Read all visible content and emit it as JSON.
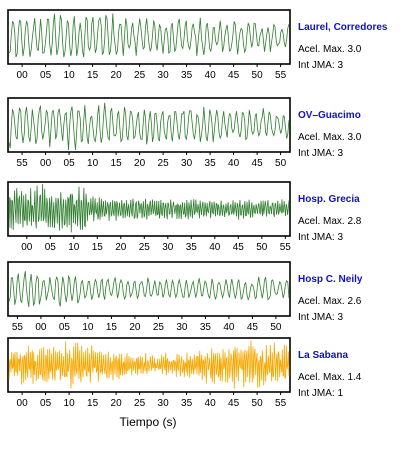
{
  "chart_data": {
    "type": "line",
    "xlabel": "Tiempo (s)",
    "panels": [
      {
        "station": "Laurel, Corredores",
        "accel_label": "Acel. Max. 3.0",
        "jma_label": "Int JMA: 3",
        "color": "#2e7d2e",
        "tick_labels": [
          "00",
          "05",
          "10",
          "15",
          "20",
          "25",
          "30",
          "35",
          "40",
          "45",
          "50",
          "55"
        ],
        "x_range": [
          -3,
          57
        ],
        "activity": "early-strong"
      },
      {
        "station": "OV–Guacimo",
        "accel_label": "Acel. Max. 3.0",
        "jma_label": "Int JMA: 3",
        "color": "#2e7d2e",
        "tick_labels": [
          "55",
          "00",
          "05",
          "10",
          "15",
          "20",
          "25",
          "30",
          "35",
          "40",
          "45",
          "50"
        ],
        "x_range": [
          -58,
          2
        ],
        "activity": "early-strong"
      },
      {
        "station": "Hosp. Grecia",
        "accel_label": "Acel. Max. 2.8",
        "jma_label": "Int JMA: 3",
        "color": "#2e7d2e",
        "tick_labels": [
          "00",
          "05",
          "10",
          "15",
          "20",
          "25",
          "30",
          "35",
          "40",
          "45",
          "50",
          "55"
        ],
        "x_range": [
          -4,
          56
        ],
        "activity": "high-freq"
      },
      {
        "station": "Hosp C. Neily",
        "accel_label": "Acel. Max. 2.6",
        "jma_label": "Int JMA: 3",
        "color": "#2e7d2e",
        "tick_labels": [
          "55",
          "00",
          "05",
          "10",
          "15",
          "20",
          "25",
          "30",
          "35",
          "40",
          "45",
          "50"
        ],
        "x_range": [
          -57,
          3
        ],
        "activity": "moderate"
      },
      {
        "station": "La Sabana",
        "accel_label": "Acel. Max. 1.4",
        "jma_label": "Int JMA: 1",
        "color": "#f5a800",
        "tick_labels": [
          "00",
          "05",
          "10",
          "15",
          "20",
          "25",
          "30",
          "35",
          "40",
          "45",
          "50",
          "55"
        ],
        "x_range": [
          -3,
          57
        ],
        "activity": "noisy"
      }
    ]
  }
}
